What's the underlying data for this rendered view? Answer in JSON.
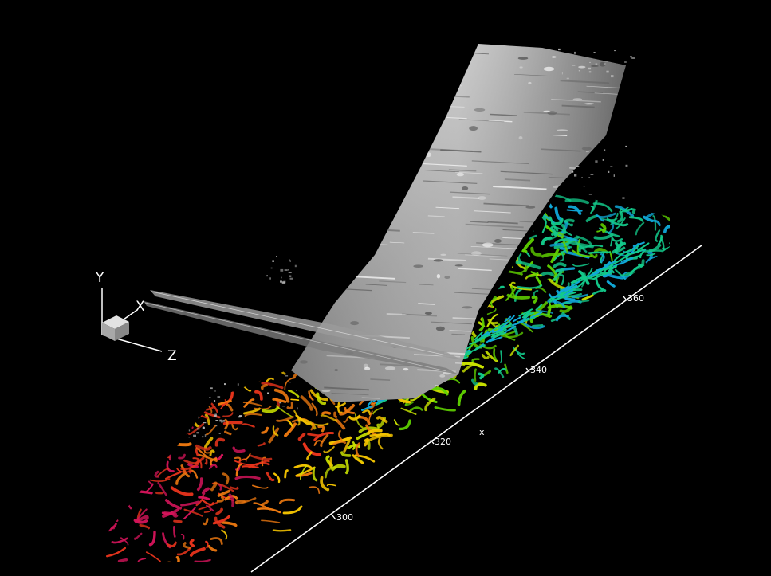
{
  "scene": {
    "background": "#000000",
    "surface_color": "#c8c8c8",
    "vortex_palette": [
      "#d4145a",
      "#e8341c",
      "#f07a10",
      "#f5c400",
      "#c8e000",
      "#5fd100",
      "#13c98a",
      "#10a8d8"
    ]
  },
  "orientation_triad": {
    "y_label": "Y",
    "x_label": "X",
    "z_label": "Z",
    "cube_color": "#bdbdbd"
  },
  "x_axis": {
    "title": "x",
    "ticks": [
      "300",
      "320",
      "340",
      "360"
    ]
  }
}
